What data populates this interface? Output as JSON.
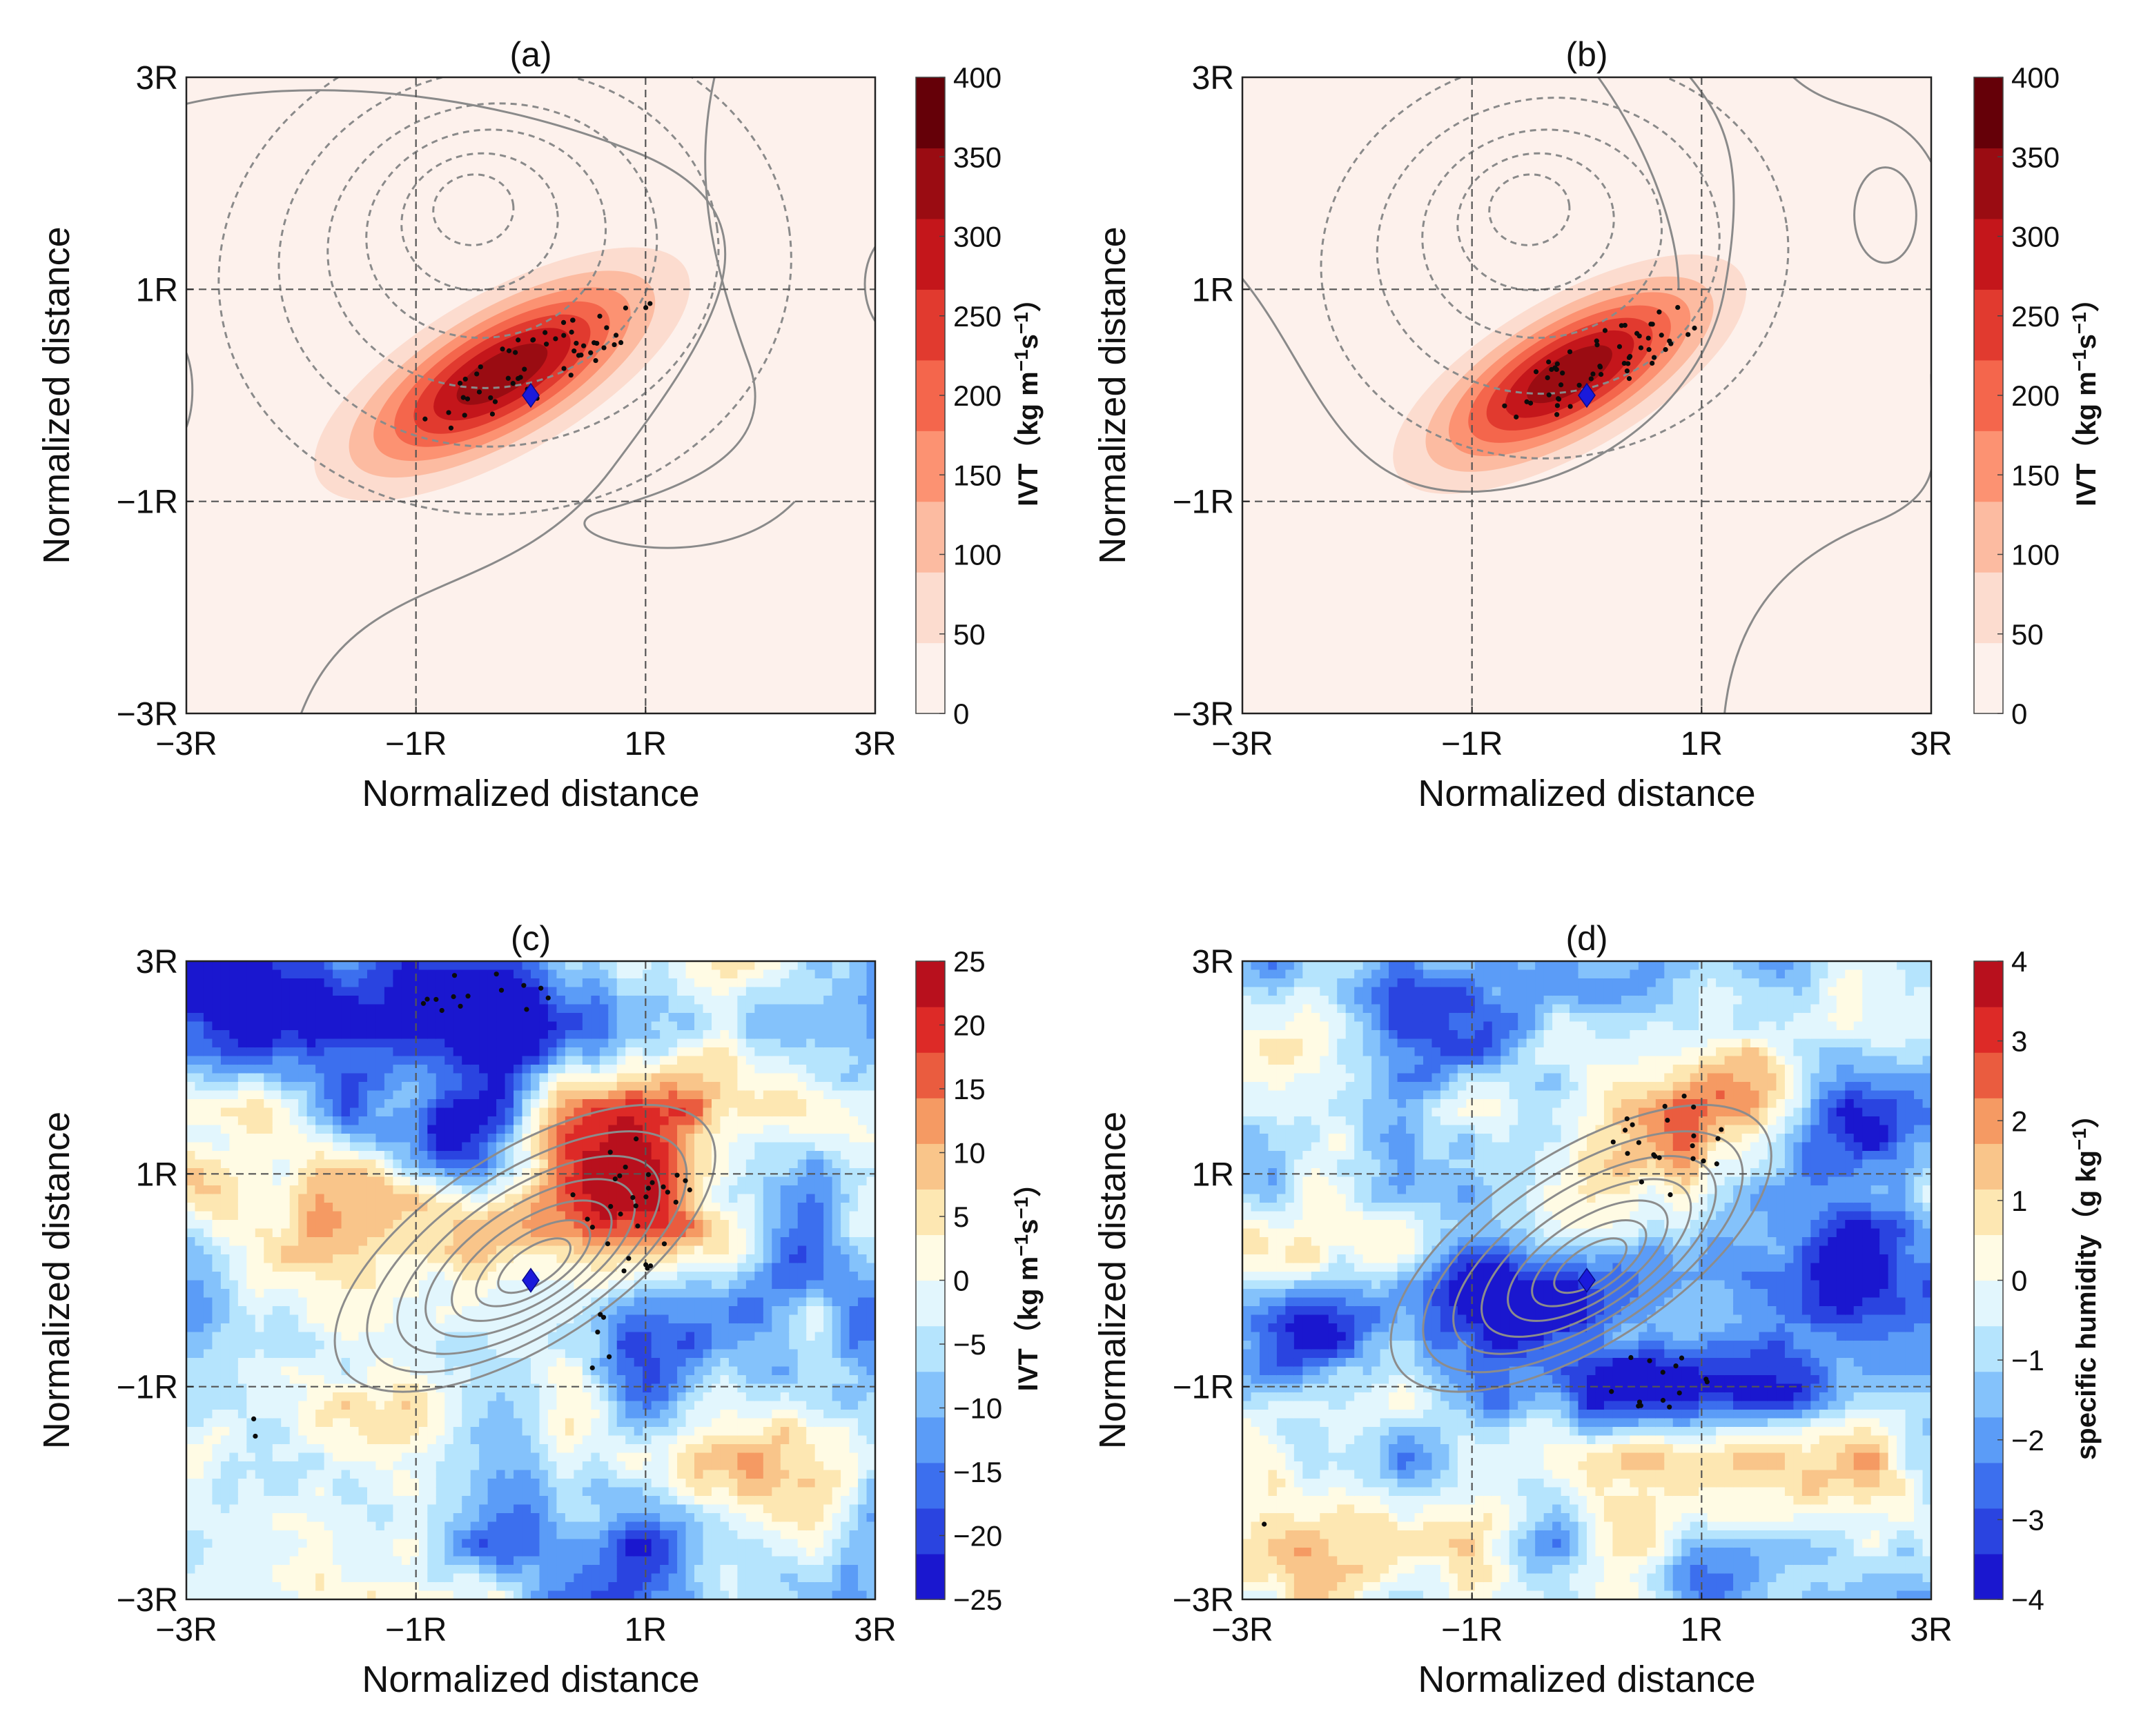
{
  "figure": {
    "shared": {
      "axis_ticks": [
        "−3R",
        "−1R",
        "1R",
        "3R"
      ],
      "axis_tick_values": [
        -3,
        -1,
        1,
        3
      ],
      "xlabel": "Normalized distance",
      "ylabel": "Normalized distance",
      "ref_lines": [
        -1,
        1
      ],
      "xlim": [
        -3,
        3
      ],
      "ylim": [
        -3,
        3
      ]
    }
  },
  "chart_data": [
    {
      "type": "heatmap",
      "panel": "a",
      "title": "(a)",
      "xlabel": "Normalized distance",
      "ylabel": "Normalized distance",
      "xlim": [
        -3,
        3
      ],
      "ylim": [
        -3,
        3
      ],
      "x_ticks": [
        "−3R",
        "−1R",
        "1R",
        "3R"
      ],
      "y_ticks": [
        "−3R",
        "−1R",
        "1R",
        "3R"
      ],
      "colorbar": {
        "label_parts": [
          "IVT",
          "（",
          "kg m",
          "−1",
          "s",
          "−1",
          "）"
        ],
        "ticks": [
          "0",
          "50",
          "100",
          "150",
          "200",
          "250",
          "300",
          "350",
          "400"
        ],
        "tick_values": [
          0,
          50,
          100,
          150,
          200,
          250,
          300,
          350,
          400
        ],
        "colors": [
          "#fdf1ec",
          "#fcdccf",
          "#fcbba1",
          "#fc9272",
          "#f4664c",
          "#e13a2f",
          "#c4161b",
          "#9a0c12",
          "#650008"
        ]
      },
      "field": {
        "cx": -0.25,
        "cy": 0.2,
        "angle": 30,
        "sx": 1.65,
        "sy": 0.68,
        "peak": 395
      },
      "stipple": {
        "cx": 0.05,
        "cy": 0.3,
        "angle": 30,
        "rx": 1.15,
        "ry": 0.3,
        "count": 55
      },
      "center_marker": {
        "x": 0,
        "y": 0,
        "symbol": "diamond",
        "color": "#1a1adb"
      }
    },
    {
      "type": "heatmap",
      "panel": "b",
      "title": "(b)",
      "xlabel": "Normalized distance",
      "ylabel": "Normalized distance",
      "xlim": [
        -3,
        3
      ],
      "ylim": [
        -3,
        3
      ],
      "x_ticks": [
        "−3R",
        "−1R",
        "1R",
        "3R"
      ],
      "y_ticks": [
        "−3R",
        "−1R",
        "1R",
        "3R"
      ],
      "colorbar": {
        "label_parts": [
          "IVT",
          "（",
          "kg m",
          "−1",
          "s",
          "−1",
          "）"
        ],
        "ticks": [
          "0",
          "50",
          "100",
          "150",
          "200",
          "250",
          "300",
          "350",
          "400"
        ],
        "tick_values": [
          0,
          50,
          100,
          150,
          200,
          250,
          300,
          350,
          400
        ],
        "colors": [
          "#fdf1ec",
          "#fcdccf",
          "#fcbba1",
          "#fc9272",
          "#f4664c",
          "#e13a2f",
          "#c4161b",
          "#9a0c12",
          "#650008"
        ]
      },
      "field": {
        "cx": -0.15,
        "cy": 0.2,
        "angle": 30,
        "sx": 1.55,
        "sy": 0.65,
        "peak": 395
      },
      "stipple": {
        "cx": 0.15,
        "cy": 0.3,
        "angle": 30,
        "rx": 1.0,
        "ry": 0.28,
        "count": 55
      },
      "center_marker": {
        "x": 0,
        "y": 0,
        "symbol": "diamond",
        "color": "#1a1adb"
      }
    },
    {
      "type": "heatmap",
      "panel": "c",
      "title": "(c)",
      "xlabel": "Normalized distance",
      "ylabel": "Normalized distance",
      "xlim": [
        -3,
        3
      ],
      "ylim": [
        -3,
        3
      ],
      "x_ticks": [
        "−3R",
        "−1R",
        "1R",
        "3R"
      ],
      "y_ticks": [
        "−3R",
        "−1R",
        "1R",
        "3R"
      ],
      "colorbar": {
        "label_parts": [
          "IVT",
          "（",
          "kg m",
          "−1",
          "s",
          "−1",
          "）"
        ],
        "ticks": [
          "25",
          "20",
          "15",
          "10",
          "5",
          "0",
          "−5",
          "−10",
          "−15",
          "−20",
          "−25"
        ],
        "tick_values": [
          25,
          20,
          15,
          10,
          5,
          0,
          -5,
          -10,
          -15,
          -20,
          -25
        ],
        "colors": [
          "#1a17cf",
          "#2a44e0",
          "#3c6fee",
          "#5b9cf7",
          "#84c2fb",
          "#b5e4fd",
          "#e2f6fd",
          "#fffbe4",
          "#fde7b2",
          "#f9c58a",
          "#f59a63",
          "#ea5c3f",
          "#dd2a27",
          "#b8101d"
        ],
        "range": [
          -25,
          25
        ]
      },
      "field_blobs": [
        {
          "x": 0.9,
          "y": 0.95,
          "sx": 0.55,
          "sy": 0.6,
          "a": 28
        },
        {
          "x": 1.5,
          "y": 1.9,
          "sx": 0.45,
          "sy": 0.3,
          "a": 12
        },
        {
          "x": -0.9,
          "y": 0.6,
          "sx": 0.7,
          "sy": 0.3,
          "a": 10
        },
        {
          "x": -1.6,
          "y": -1.3,
          "sx": 0.5,
          "sy": 0.4,
          "a": 14
        },
        {
          "x": -2.3,
          "y": 0.2,
          "sx": 0.6,
          "sy": 0.8,
          "a": 5
        },
        {
          "x": 2.0,
          "y": -1.6,
          "sx": 0.8,
          "sy": 0.5,
          "a": 6
        },
        {
          "x": -0.6,
          "y": 2.5,
          "sx": 1.1,
          "sy": 0.5,
          "a": -24
        },
        {
          "x": -2.6,
          "y": 2.8,
          "sx": 0.7,
          "sy": 0.4,
          "a": -18
        },
        {
          "x": -0.8,
          "y": 1.4,
          "sx": 0.35,
          "sy": 0.3,
          "a": -22
        },
        {
          "x": 1.7,
          "y": -0.3,
          "sx": 0.9,
          "sy": 0.6,
          "a": -12
        },
        {
          "x": 0.5,
          "y": -2.6,
          "sx": 0.9,
          "sy": 0.5,
          "a": -12
        },
        {
          "x": -2.0,
          "y": -0.5,
          "sx": 0.7,
          "sy": 0.35,
          "a": -6
        },
        {
          "x": 0.7,
          "y": -0.5,
          "sx": 0.4,
          "sy": 0.4,
          "a": -8
        }
      ],
      "stipple": [
        {
          "cx": -0.4,
          "cy": 2.6,
          "rx": 0.6,
          "ry": 0.3,
          "count": 14
        },
        {
          "cx": 0.85,
          "cy": 0.75,
          "rx": 0.6,
          "ry": 0.7,
          "count": 30
        },
        {
          "cx": 0.6,
          "cy": -0.55,
          "rx": 0.15,
          "ry": 0.35,
          "count": 5
        },
        {
          "cx": -2.4,
          "cy": -1.4,
          "rx": 0.05,
          "ry": 0.12,
          "count": 2
        }
      ],
      "center_marker": {
        "x": 0,
        "y": 0,
        "symbol": "diamond",
        "color": "#1a1adb"
      }
    },
    {
      "type": "heatmap",
      "panel": "d",
      "title": "(d)",
      "xlabel": "Normalized distance",
      "ylabel": "Normalized distance",
      "xlim": [
        -3,
        3
      ],
      "ylim": [
        -3,
        3
      ],
      "x_ticks": [
        "−3R",
        "−1R",
        "1R",
        "3R"
      ],
      "y_ticks": [
        "−3R",
        "−1R",
        "1R",
        "3R"
      ],
      "colorbar": {
        "label_parts": [
          "specific humidity",
          "（",
          "g kg",
          "−1",
          "",
          "",
          "）"
        ],
        "ticks": [
          "4",
          "3",
          "2",
          "1",
          "0",
          "−1",
          "−2",
          "−3",
          "−4"
        ],
        "tick_values": [
          4,
          3,
          2,
          1,
          0,
          -1,
          -2,
          -3,
          -4
        ],
        "colors": [
          "#1a17cf",
          "#2a44e0",
          "#3c6fee",
          "#5b9cf7",
          "#84c2fb",
          "#b5e4fd",
          "#e2f6fd",
          "#fffbe4",
          "#fde7b2",
          "#f9c58a",
          "#f59a63",
          "#ea5c3f",
          "#dd2a27",
          "#b8101d"
        ],
        "range": [
          -4,
          4
        ]
      },
      "field_blobs": [
        {
          "x": 0.6,
          "y": 1.4,
          "sx": 0.6,
          "sy": 0.5,
          "a": 2.8
        },
        {
          "x": 1.5,
          "y": 1.9,
          "sx": 0.3,
          "sy": 0.25,
          "a": 2
        },
        {
          "x": -2.6,
          "y": -2.7,
          "sx": 0.5,
          "sy": 0.3,
          "a": 2.2
        },
        {
          "x": 1.8,
          "y": -1.7,
          "sx": 0.9,
          "sy": 0.5,
          "a": 1.2
        },
        {
          "x": -2.5,
          "y": 0.2,
          "sx": 0.3,
          "sy": 0.3,
          "a": 1.6
        },
        {
          "x": -0.4,
          "y": -0.1,
          "sx": 0.8,
          "sy": 0.35,
          "a": -3.6
        },
        {
          "x": 0.6,
          "y": -1.0,
          "sx": 0.9,
          "sy": 0.3,
          "a": -3.8
        },
        {
          "x": 2.3,
          "y": 0.0,
          "sx": 0.9,
          "sy": 0.6,
          "a": -3.2
        },
        {
          "x": -2.6,
          "y": -0.6,
          "sx": 0.5,
          "sy": 0.4,
          "a": -3
        },
        {
          "x": 2.5,
          "y": 1.5,
          "sx": 0.6,
          "sy": 0.4,
          "a": -2
        },
        {
          "x": -1.2,
          "y": 2.6,
          "sx": 1.0,
          "sy": 0.4,
          "a": -1.4
        },
        {
          "x": 1.5,
          "y": -2.8,
          "sx": 0.8,
          "sy": 0.3,
          "a": -1.6
        }
      ],
      "stipple": [
        {
          "cx": 0.7,
          "cy": 1.3,
          "rx": 0.5,
          "ry": 0.5,
          "count": 22
        },
        {
          "cx": 0.6,
          "cy": -0.95,
          "rx": 0.5,
          "ry": 0.25,
          "count": 14
        },
        {
          "cx": -2.8,
          "cy": -2.3,
          "rx": 0.02,
          "ry": 0.02,
          "count": 1
        }
      ],
      "center_marker": {
        "x": 0,
        "y": 0,
        "symbol": "diamond",
        "color": "#1a1adb"
      }
    }
  ]
}
